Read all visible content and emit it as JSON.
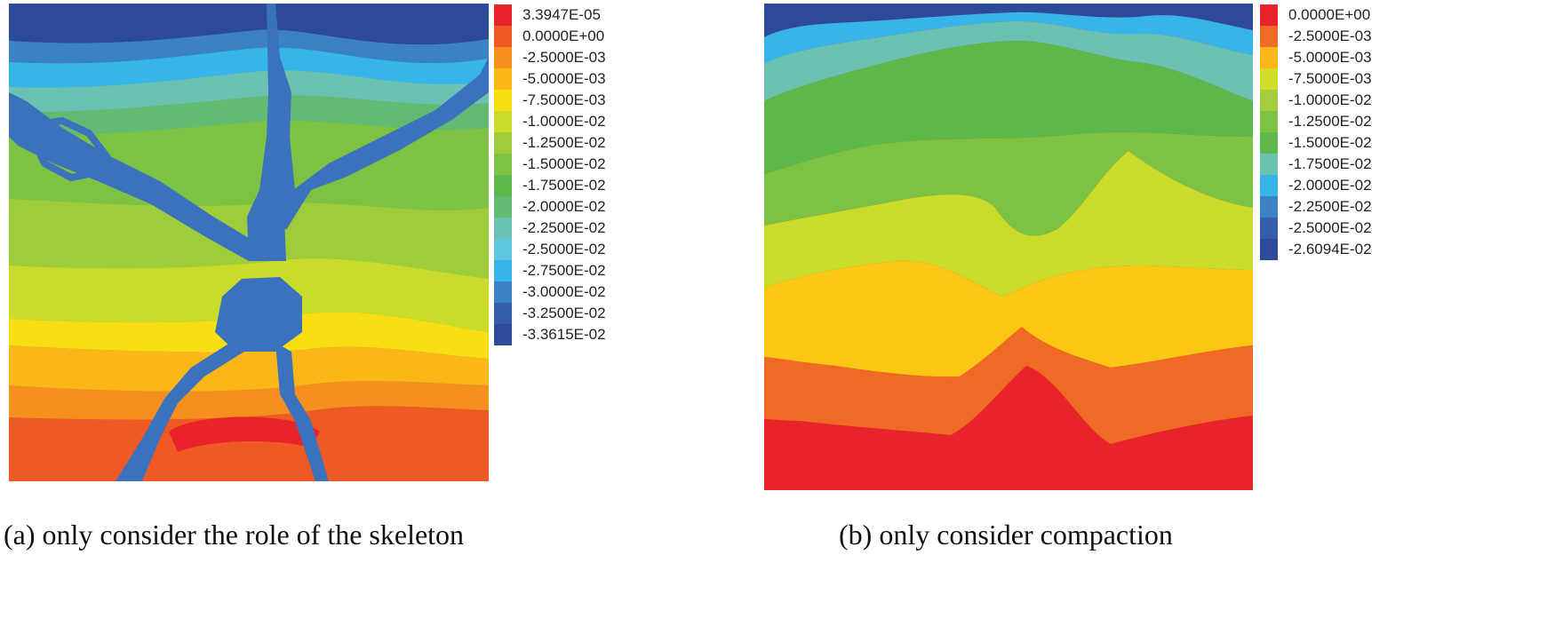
{
  "panels": [
    {
      "id": "a",
      "caption": "(a) only consider the role of the skeleton",
      "legend": [
        {
          "label": "3.3947E-05",
          "color": "#e8242a"
        },
        {
          "label": "0.0000E+00",
          "color": "#ef5a24"
        },
        {
          "label": "-2.5000E-03",
          "color": "#f5901f"
        },
        {
          "label": "-5.0000E-03",
          "color": "#fbb618"
        },
        {
          "label": "-7.5000E-03",
          "color": "#f8de12"
        },
        {
          "label": "-1.0000E-02",
          "color": "#c9db2b"
        },
        {
          "label": "-1.2500E-02",
          "color": "#9fcc3b"
        },
        {
          "label": "-1.5000E-02",
          "color": "#7dc242"
        },
        {
          "label": "-1.7500E-02",
          "color": "#5cb848"
        },
        {
          "label": "-2.0000E-02",
          "color": "#62bb73"
        },
        {
          "label": "-2.2500E-02",
          "color": "#6cc2b2"
        },
        {
          "label": "-2.5000E-02",
          "color": "#5fc6df"
        },
        {
          "label": "-2.7500E-02",
          "color": "#36b5ea"
        },
        {
          "label": "-3.0000E-02",
          "color": "#3a82c4"
        },
        {
          "label": "-3.2500E-02",
          "color": "#345fa8"
        },
        {
          "label": "-3.3615E-02",
          "color": "#2d4a9a"
        }
      ]
    },
    {
      "id": "b",
      "caption": "(b) only consider compaction",
      "legend": [
        {
          "label": "0.0000E+00",
          "color": "#e8242a"
        },
        {
          "label": "-2.5000E-03",
          "color": "#ef6a24"
        },
        {
          "label": "-5.0000E-03",
          "color": "#fbb618"
        },
        {
          "label": "-7.5000E-03",
          "color": "#d1dc2b"
        },
        {
          "label": "-1.0000E-02",
          "color": "#a3cd3a"
        },
        {
          "label": "-1.2500E-02",
          "color": "#7dc242"
        },
        {
          "label": "-1.5000E-02",
          "color": "#5cb848"
        },
        {
          "label": "-1.7500E-02",
          "color": "#6cc2b2"
        },
        {
          "label": "-2.0000E-02",
          "color": "#36b5ea"
        },
        {
          "label": "-2.2500E-02",
          "color": "#3a82c4"
        },
        {
          "label": "-2.5000E-02",
          "color": "#345fa8"
        },
        {
          "label": "-2.6094E-02",
          "color": "#2d4a9a"
        }
      ]
    }
  ],
  "colors": {
    "skeleton": "#3a72bd"
  }
}
